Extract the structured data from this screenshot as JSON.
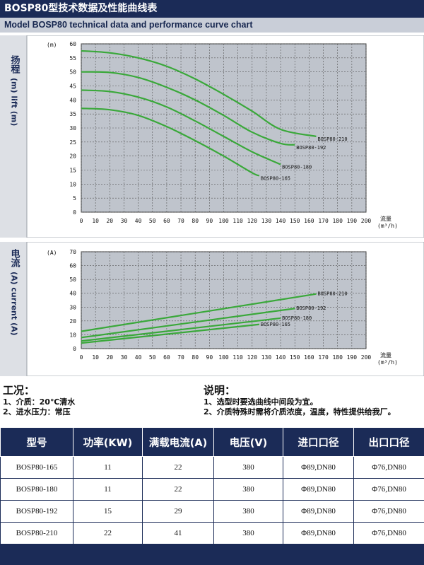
{
  "header": {
    "title": "BOSP80型技术数据及性能曲线表",
    "subtitle": "Model BOSP80 technical data and performance curve chart"
  },
  "chart_data": [
    {
      "type": "line",
      "ylabel_cn": "扬程",
      "ylabel_en": "(m) lift (m)",
      "yunit": "(m)",
      "xlabel": "流量",
      "xunit": "(m³/h)",
      "xlim": [
        0,
        200
      ],
      "ylim": [
        0,
        60
      ],
      "xticks": [
        0,
        10,
        20,
        30,
        40,
        50,
        60,
        70,
        80,
        90,
        100,
        110,
        120,
        130,
        140,
        150,
        160,
        170,
        180,
        190,
        200
      ],
      "yticks": [
        0,
        5,
        10,
        15,
        20,
        25,
        30,
        35,
        40,
        45,
        50,
        55,
        60
      ],
      "grid": true,
      "series": [
        {
          "name": "BOSP80-210",
          "x": [
            0,
            20,
            40,
            60,
            80,
            100,
            120,
            140,
            165
          ],
          "y": [
            57.5,
            56.8,
            55,
            52,
            47.5,
            42,
            36,
            29.5,
            27
          ]
        },
        {
          "name": "BOSP80-192",
          "x": [
            0,
            20,
            40,
            60,
            80,
            100,
            120,
            140,
            150
          ],
          "y": [
            50,
            49.8,
            48,
            44.5,
            40,
            34.5,
            28.5,
            24.5,
            24
          ]
        },
        {
          "name": "BOSP80-180",
          "x": [
            0,
            20,
            40,
            60,
            80,
            100,
            120,
            140
          ],
          "y": [
            43.5,
            43,
            41,
            37.5,
            32.5,
            27,
            21.5,
            17
          ]
        },
        {
          "name": "BOSP80-165",
          "x": [
            0,
            20,
            40,
            60,
            80,
            100,
            120,
            125
          ],
          "y": [
            37,
            36.5,
            34.5,
            30.5,
            25.5,
            20,
            14,
            13
          ]
        }
      ]
    },
    {
      "type": "line",
      "ylabel_cn": "电流",
      "ylabel_en": "(A) current (A)",
      "yunit": "(A)",
      "xlabel": "流量",
      "xunit": "(m³/h)",
      "xlim": [
        0,
        200
      ],
      "ylim": [
        0,
        70
      ],
      "xticks": [
        0,
        10,
        20,
        30,
        40,
        50,
        60,
        70,
        80,
        90,
        100,
        110,
        120,
        130,
        140,
        150,
        160,
        170,
        180,
        190,
        200
      ],
      "yticks": [
        0,
        10,
        20,
        30,
        40,
        50,
        60,
        70
      ],
      "grid": true,
      "series": [
        {
          "name": "BOSP80-210",
          "x": [
            0,
            165
          ],
          "y": [
            12.5,
            39.5
          ]
        },
        {
          "name": "BOSP80-192",
          "x": [
            0,
            150
          ],
          "y": [
            8,
            29
          ]
        },
        {
          "name": "BOSP80-180",
          "x": [
            0,
            140
          ],
          "y": [
            5.5,
            22
          ]
        },
        {
          "name": "BOSP80-165",
          "x": [
            0,
            125
          ],
          "y": [
            4,
            17.5
          ]
        }
      ]
    }
  ],
  "conditions": {
    "heading": "工况：",
    "items": [
      "1、介质：20℃清水",
      "2、进水压力：常压"
    ]
  },
  "notes": {
    "heading": "说明：",
    "items": [
      "1、选型时要选曲线中间段为宜。",
      "2、介质特殊时需将介质浓度，温度，特性提供给我厂。"
    ]
  },
  "table": {
    "headers": [
      "型号",
      "功率(KW)",
      "满载电流(A)",
      "电压(V)",
      "进口口径",
      "出口口径"
    ],
    "rows": [
      [
        "BOSP80-165",
        "11",
        "22",
        "380",
        "Φ89,DN80",
        "Φ76,DN80"
      ],
      [
        "BOSP80-180",
        "11",
        "22",
        "380",
        "Φ89,DN80",
        "Φ76,DN80"
      ],
      [
        "BOSP80-192",
        "15",
        "29",
        "380",
        "Φ89,DN80",
        "Φ76,DN80"
      ],
      [
        "BOSP80-210",
        "22",
        "41",
        "380",
        "Φ89,DN80",
        "Φ76,DN80"
      ]
    ]
  },
  "colors": {
    "navy": "#1b2b57",
    "plot_bg": "#bfc4cc",
    "line": "#3aa83a",
    "frame_bg": "#dde0e5"
  }
}
